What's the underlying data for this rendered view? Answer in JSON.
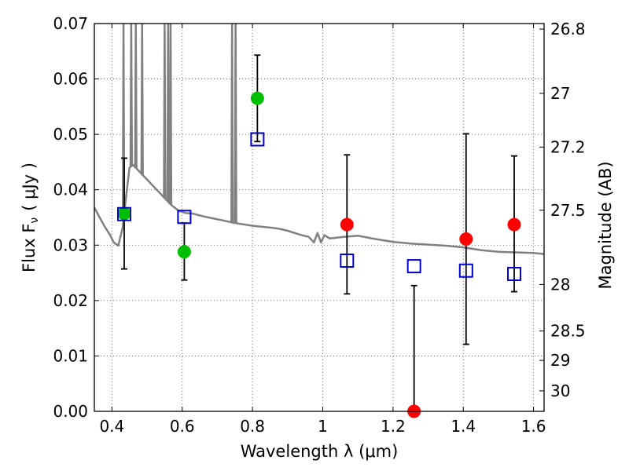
{
  "chart_data": {
    "type": "scatter",
    "title": "",
    "xlabel": "Wavelength  λ (μm)",
    "ylabel": "Flux  F",
    "ylabel_sub": "ν",
    "ylabel_unit": "( μJy )",
    "y2label": "Magnitude (AB)",
    "xlim": [
      0.35,
      1.63
    ],
    "ylim": [
      0.0,
      0.07
    ],
    "grid": true,
    "xticks": [
      0.4,
      0.6,
      0.8,
      1.0,
      1.2,
      1.4,
      1.6
    ],
    "xtick_labels": [
      "0.4",
      "0.6",
      "0.8",
      "1",
      "1.2",
      "1.4",
      "1.6"
    ],
    "yticks": [
      0.0,
      0.01,
      0.02,
      0.03,
      0.04,
      0.05,
      0.06,
      0.07
    ],
    "ytick_labels": [
      "0.00",
      "0.01",
      "0.02",
      "0.03",
      "0.04",
      "0.05",
      "0.06",
      "0.07"
    ],
    "y2ticks": [
      {
        "flux": 0.069,
        "label": "26.8"
      },
      {
        "flux": 0.0574,
        "label": "27"
      },
      {
        "flux": 0.0477,
        "label": "27.2"
      },
      {
        "flux": 0.0363,
        "label": "27.5"
      },
      {
        "flux": 0.0229,
        "label": "28"
      },
      {
        "flux": 0.0145,
        "label": "28.5"
      },
      {
        "flux": 0.0092,
        "label": "29"
      },
      {
        "flux": 0.0037,
        "label": "30"
      }
    ],
    "series": [
      {
        "marker": "circle",
        "color": "#00bf00",
        "points": [
          {
            "x": 0.435,
            "y": 0.0357,
            "yerr": [
              0.0257,
              0.0457
            ]
          },
          {
            "x": 0.606,
            "y": 0.0288,
            "yerr": [
              0.0237,
              0.034
            ]
          },
          {
            "x": 0.814,
            "y": 0.0565,
            "yerr": [
              0.0487,
              0.0643
            ]
          }
        ]
      },
      {
        "marker": "circle",
        "color": "#ff0000",
        "points": [
          {
            "x": 1.069,
            "y": 0.0337,
            "yerr": [
              0.0212,
              0.0463
            ]
          },
          {
            "x": 1.26,
            "y": 0.0,
            "yerr": [
              0.0,
              0.0227
            ]
          },
          {
            "x": 1.408,
            "y": 0.0311,
            "yerr": [
              0.0121,
              0.0501
            ]
          },
          {
            "x": 1.545,
            "y": 0.0337,
            "yerr": [
              0.0216,
              0.0461
            ]
          }
        ]
      },
      {
        "marker": "open-square",
        "color": "#0000cc",
        "points": [
          {
            "x": 0.435,
            "y": 0.0356
          },
          {
            "x": 0.606,
            "y": 0.0351
          },
          {
            "x": 0.814,
            "y": 0.0491
          },
          {
            "x": 1.069,
            "y": 0.0272
          },
          {
            "x": 1.26,
            "y": 0.0262
          },
          {
            "x": 1.408,
            "y": 0.0254
          },
          {
            "x": 1.545,
            "y": 0.0248
          }
        ]
      }
    ],
    "model_spectrum": {
      "color": "#808080",
      "points": [
        [
          0.35,
          0.0368
        ],
        [
          0.365,
          0.035
        ],
        [
          0.38,
          0.0333
        ],
        [
          0.395,
          0.0318
        ],
        [
          0.405,
          0.0305
        ],
        [
          0.418,
          0.0299
        ],
        [
          0.43,
          0.033
        ],
        [
          0.44,
          0.0385
        ],
        [
          0.45,
          0.044
        ],
        [
          0.46,
          0.0445
        ],
        [
          0.475,
          0.0435
        ],
        [
          0.49,
          0.0425
        ],
        [
          0.505,
          0.0415
        ],
        [
          0.52,
          0.0405
        ],
        [
          0.535,
          0.0395
        ],
        [
          0.55,
          0.0385
        ],
        [
          0.57,
          0.0372
        ],
        [
          0.59,
          0.0362
        ],
        [
          0.61,
          0.0358
        ],
        [
          0.63,
          0.0357
        ],
        [
          0.66,
          0.0352
        ],
        [
          0.69,
          0.0348
        ],
        [
          0.72,
          0.0344
        ],
        [
          0.75,
          0.034
        ],
        [
          0.78,
          0.0337
        ],
        [
          0.8,
          0.0335
        ],
        [
          0.83,
          0.0333
        ],
        [
          0.86,
          0.0331
        ],
        [
          0.88,
          0.0329
        ],
        [
          0.9,
          0.0326
        ],
        [
          0.92,
          0.0322
        ],
        [
          0.94,
          0.0318
        ],
        [
          0.96,
          0.0315
        ],
        [
          0.975,
          0.0305
        ],
        [
          0.985,
          0.0322
        ],
        [
          0.995,
          0.0305
        ],
        [
          1.005,
          0.0318
        ],
        [
          1.02,
          0.0312
        ],
        [
          1.06,
          0.0315
        ],
        [
          1.1,
          0.0317
        ],
        [
          1.15,
          0.0311
        ],
        [
          1.2,
          0.0306
        ],
        [
          1.25,
          0.0303
        ],
        [
          1.3,
          0.0301
        ],
        [
          1.35,
          0.0299
        ],
        [
          1.4,
          0.0296
        ],
        [
          1.45,
          0.0291
        ],
        [
          1.5,
          0.0288
        ],
        [
          1.55,
          0.0287
        ],
        [
          1.6,
          0.0286
        ],
        [
          1.63,
          0.0284
        ]
      ],
      "emission_lines": [
        {
          "x": 0.433,
          "peak": 0.07
        },
        {
          "x": 0.455,
          "peak": 0.07
        },
        {
          "x": 0.468,
          "peak": 0.07
        },
        {
          "x": 0.486,
          "peak": 0.07
        },
        {
          "x": 0.55,
          "peak": 0.07
        },
        {
          "x": 0.56,
          "peak": 0.07
        },
        {
          "x": 0.567,
          "peak": 0.07
        },
        {
          "x": 0.742,
          "peak": 0.07
        },
        {
          "x": 0.752,
          "peak": 0.07
        }
      ]
    }
  }
}
